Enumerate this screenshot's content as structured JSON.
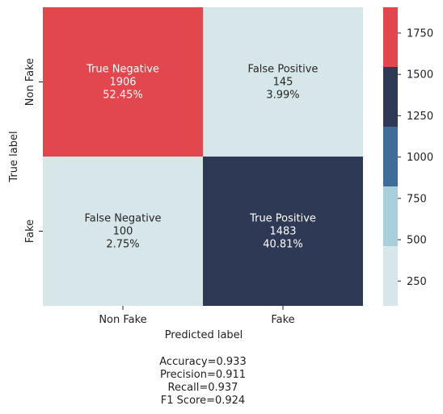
{
  "chart_data": {
    "type": "heatmap",
    "title": "",
    "xlabel": "Predicted label",
    "ylabel": "True label",
    "x_categories": [
      "Non Fake",
      "Fake"
    ],
    "y_categories": [
      "Non Fake",
      "Fake"
    ],
    "cells": [
      {
        "row": 0,
        "col": 0,
        "name": "True Negative",
        "count": 1906,
        "percent": "52.45%",
        "count_label": "1906"
      },
      {
        "row": 0,
        "col": 1,
        "name": "False Positive",
        "count": 145,
        "percent": "3.99%",
        "count_label": "145"
      },
      {
        "row": 1,
        "col": 0,
        "name": "False Negative",
        "count": 100,
        "percent": "2.75%",
        "count_label": "100"
      },
      {
        "row": 1,
        "col": 1,
        "name": "True Positive",
        "count": 1483,
        "percent": "40.81%",
        "count_label": "1483"
      }
    ],
    "colorbar": {
      "range": [
        100,
        1906
      ],
      "ticks": [
        250,
        500,
        750,
        1000,
        1250,
        1500,
        1750
      ],
      "tick_labels": [
        "250",
        "500",
        "750",
        "1000",
        "1250",
        "1500",
        "1750"
      ],
      "bands": [
        {
          "from": 100,
          "to": 461.2,
          "color": "#d7e6e8"
        },
        {
          "from": 461.2,
          "to": 822.4,
          "color": "#a9cfdb"
        },
        {
          "from": 822.4,
          "to": 1183.6,
          "color": "#3f6d98"
        },
        {
          "from": 1183.6,
          "to": 1544.8,
          "color": "#2e3955"
        },
        {
          "from": 1544.8,
          "to": 1906,
          "color": "#e2474e"
        }
      ]
    },
    "grid": false,
    "legend": "colorbar-right",
    "annotations": [
      "Accuracy=0.933",
      "Precision=0.911",
      "Recall=0.937",
      "F1 Score=0.924"
    ]
  }
}
